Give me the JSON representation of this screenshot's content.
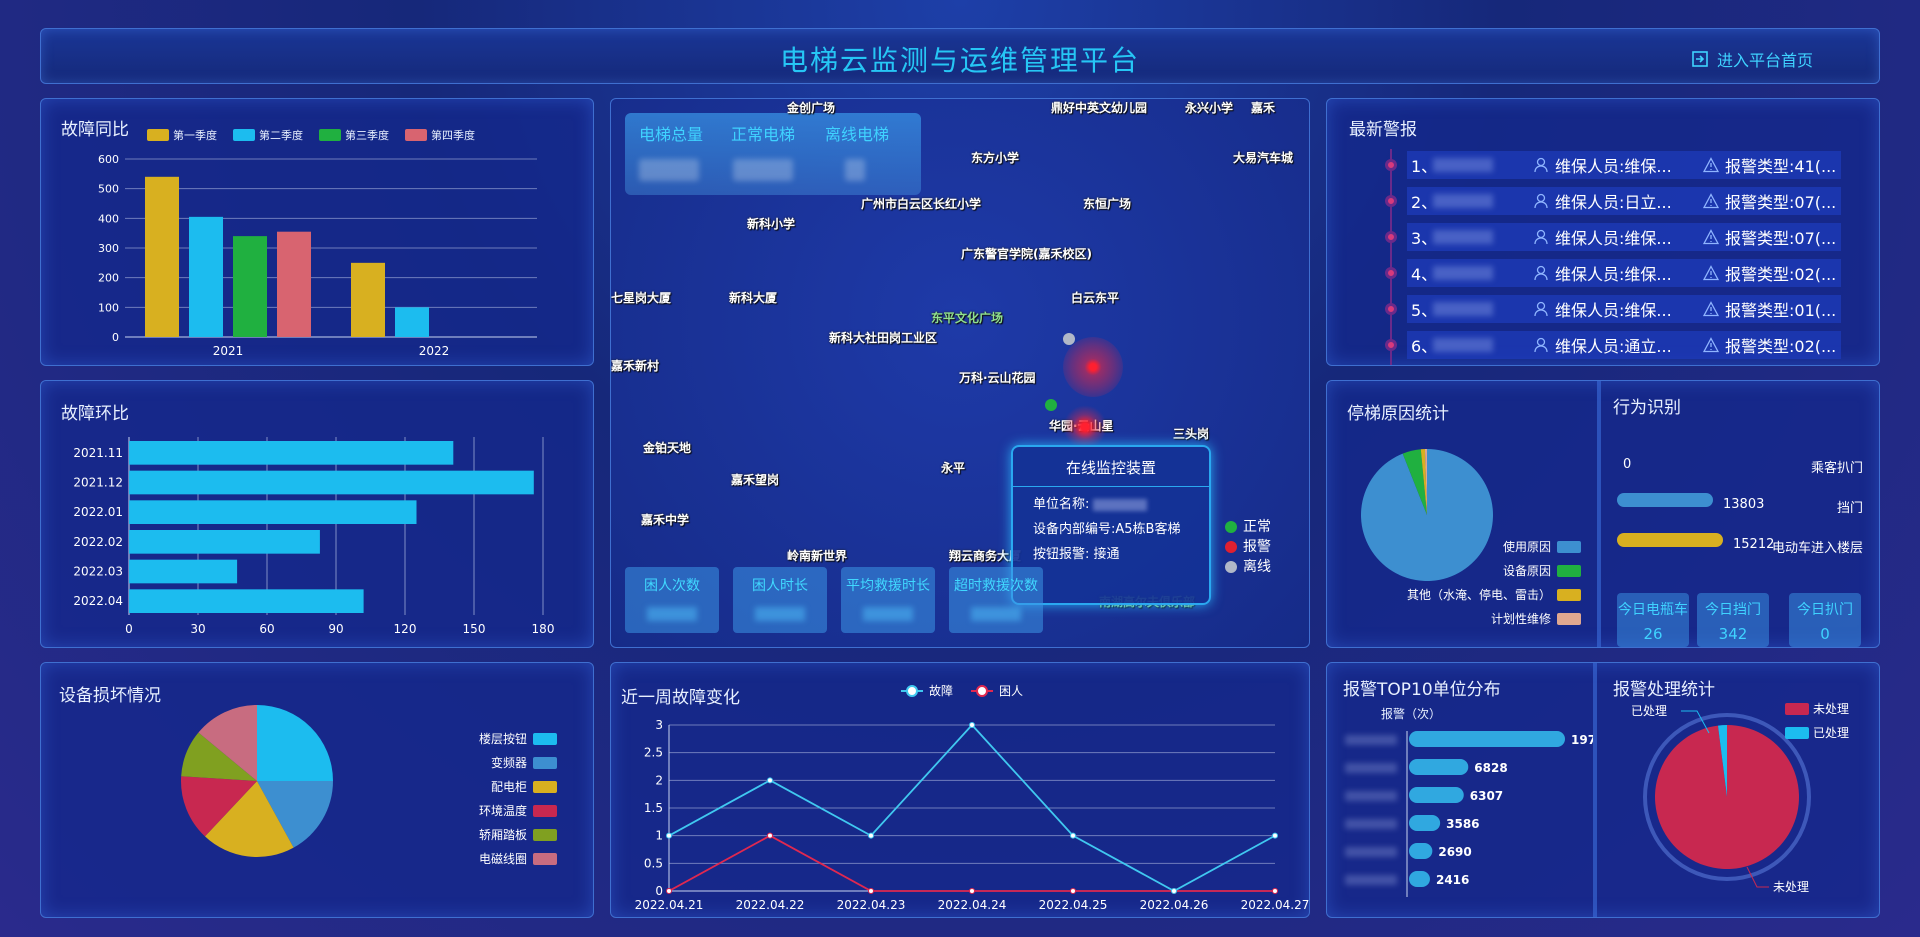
{
  "header": {
    "title": "电梯云监测与运维管理平台",
    "home_label": "进入平台首页"
  },
  "fault_yoy": {
    "title": "故障同比",
    "chart_data": {
      "type": "bar",
      "categories": [
        "2021",
        "2022"
      ],
      "series": [
        {
          "name": "第一季度",
          "values": [
            540,
            250
          ],
          "color": "#d8b020"
        },
        {
          "name": "第二季度",
          "values": [
            405,
            100
          ],
          "color": "#1cbcef"
        },
        {
          "name": "第三季度",
          "values": [
            340,
            null
          ],
          "color": "#20b040"
        },
        {
          "name": "第四季度",
          "values": [
            355,
            null
          ],
          "color": "#d86470"
        }
      ],
      "ylim": [
        0,
        600
      ],
      "yticks": [
        "0",
        "100",
        "200",
        "300",
        "400",
        "500",
        "600"
      ]
    }
  },
  "fault_mom": {
    "title": "故障环比",
    "chart_data": {
      "type": "bar",
      "orientation": "horizontal",
      "categories": [
        "2021.11",
        "2021.12",
        "2022.01",
        "2022.02",
        "2022.03",
        "2022.04"
      ],
      "values": [
        141,
        176,
        125,
        83,
        47,
        102
      ],
      "xlim": [
        0,
        180
      ],
      "xticks": [
        "0",
        "30",
        "60",
        "90",
        "120",
        "150",
        "180"
      ],
      "color": "#1cbcef"
    }
  },
  "damage": {
    "title": "设备损坏情况",
    "chart_data": {
      "type": "pie",
      "labels": [
        "楼层按钮",
        "变频器",
        "配电柜",
        "环境温度",
        "轿厢踏板",
        "电磁线圈"
      ],
      "values": [
        25,
        17,
        20,
        14,
        10,
        14
      ],
      "colors": [
        "#1cbcef",
        "#3d8fd0",
        "#d8b020",
        "#c82850",
        "#80a020",
        "#c86c80"
      ]
    }
  },
  "map": {
    "stats": [
      "电梯总量",
      "正常电梯",
      "离线电梯"
    ],
    "cards": [
      "困人次数",
      "困人时长",
      "平均救援时长",
      "超时救援次数"
    ],
    "pois": [
      "金创广场",
      "鼎好中英文幼儿园",
      "永兴小学",
      "东方小学",
      "大易汽车城",
      "广州市白云区长红小学",
      "东恒广场",
      "新科小学",
      "广东警官学院(嘉禾校区)",
      "七星岗大厦",
      "新科大厦",
      "东平文化广场",
      "白云东平",
      "新科大社田岗工业区",
      "万科·云山花园",
      "华园·云山星",
      "嘉禾新村",
      "金铂天地",
      "嘉禾望岗",
      "永平",
      "三头岗",
      "嘉禾中学",
      "岭南新世界",
      "翔云商务大厦",
      "南湖高尔夫俱乐部",
      "嘉禾"
    ],
    "popup": {
      "title": "在线监控装置",
      "unit_label": "单位名称:",
      "device_label": "设备内部编号:A5栋B客梯",
      "button_label": "按钮报警: 接通"
    },
    "status": [
      "正常",
      "报警",
      "离线"
    ],
    "status_colors": [
      "#20b040",
      "#e02030",
      "#b0b8c8"
    ]
  },
  "weekly": {
    "title": "近一周故障变化",
    "chart_data": {
      "type": "line",
      "x": [
        "2022.04.21",
        "2022.04.22",
        "2022.04.23",
        "2022.04.24",
        "2022.04.25",
        "2022.04.26",
        "2022.04.27"
      ],
      "series": [
        {
          "name": "故障",
          "values": [
            1,
            2,
            1,
            3,
            1,
            0,
            1
          ],
          "color": "#40c8f0"
        },
        {
          "name": "困人",
          "values": [
            0,
            1,
            0,
            0,
            0,
            0,
            0
          ],
          "color": "#e02850"
        }
      ],
      "ylim": [
        0,
        3
      ],
      "yticks": [
        "0",
        "0.5",
        "1",
        "1.5",
        "2",
        "2.5",
        "3"
      ]
    }
  },
  "alarms": {
    "title": "最新警报",
    "items": [
      {
        "n": "1、",
        "person": "维保人员:维保...",
        "type": "报警类型:41(..."
      },
      {
        "n": "2、",
        "person": "维保人员:日立...",
        "type": "报警类型:07(..."
      },
      {
        "n": "3、",
        "person": "维保人员:维保...",
        "type": "报警类型:07(..."
      },
      {
        "n": "4、",
        "person": "维保人员:维保...",
        "type": "报警类型:02(..."
      },
      {
        "n": "5、",
        "person": "维保人员:维保...",
        "type": "报警类型:01(..."
      },
      {
        "n": "6、",
        "person": "维保人员:通立...",
        "type": "报警类型:02(..."
      }
    ]
  },
  "stop_reason": {
    "title": "停梯原因统计",
    "chart_data": {
      "type": "pie",
      "labels": [
        "使用原因",
        "设备原因",
        "其他（水淹、停电、雷击）",
        "计划性维修"
      ],
      "values": [
        94,
        4.5,
        1,
        0.5
      ],
      "colors": [
        "#3d8fd0",
        "#20b040",
        "#d8b020",
        "#e0a890"
      ]
    }
  },
  "behavior": {
    "title": "行为识别",
    "rows": [
      {
        "value": "0",
        "label": "乘客扒门",
        "fill": 0,
        "color": "#3d8fd0"
      },
      {
        "value": "13803",
        "label": "挡门",
        "fill": 0.9,
        "color": "#3d8fd0"
      },
      {
        "value": "15212",
        "label": "电动车进入楼层",
        "fill": 1,
        "color": "#d8b020"
      }
    ],
    "cards": [
      {
        "label": "今日电瓶车",
        "value": "26"
      },
      {
        "label": "今日挡门",
        "value": "342"
      },
      {
        "label": "今日扒门",
        "value": "0"
      }
    ]
  },
  "top10": {
    "title": "报警TOP10单位分布",
    "unit_label": "报警（次）",
    "chart_data": {
      "type": "bar",
      "orientation": "horizontal",
      "values": [
        197,
        6828,
        6307,
        3586,
        2690,
        2416
      ],
      "labels": [
        "197",
        "6828",
        "6307",
        "3586",
        "2690",
        "2416"
      ]
    }
  },
  "handle": {
    "title": "报警处理统计",
    "chart_data": {
      "type": "pie",
      "labels": [
        "未处理",
        "已处理"
      ],
      "values": [
        98,
        2
      ],
      "colors": [
        "#c82850",
        "#1cbcef"
      ]
    },
    "callout_processed": "已处理",
    "callout_unprocessed": "未处理"
  }
}
